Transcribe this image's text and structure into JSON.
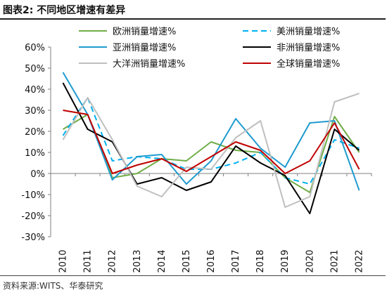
{
  "header": {
    "title": "图表2:  不同地区增速有差异"
  },
  "footer": {
    "source": "资料来源:WITS、华泰研究"
  },
  "chart_data": {
    "type": "line",
    "categories": [
      "2010",
      "2011",
      "2012",
      "2013",
      "2014",
      "2015",
      "2016",
      "2017",
      "2018",
      "2019",
      "2020",
      "2021",
      "2022"
    ],
    "y_ticks": [
      "60%",
      "50%",
      "40%",
      "30%",
      "20%",
      "10%",
      "0%",
      "-10%",
      "-20%",
      "-30%"
    ],
    "ylim": [
      -30,
      60
    ],
    "grid": false,
    "legend_position": "top",
    "series": [
      {
        "name": "欧洲销量增速%",
        "color": "#70ad47",
        "dash": false,
        "values": [
          21,
          28,
          -2,
          0,
          7,
          6,
          15,
          11,
          10,
          -2,
          -9,
          27,
          10
        ]
      },
      {
        "name": "美洲销量增速%",
        "color": "#00b0f0",
        "dash": true,
        "values": [
          18,
          36,
          6,
          8,
          7,
          2,
          2,
          5,
          10,
          -2,
          -5,
          16,
          12
        ]
      },
      {
        "name": "亚洲销量增速%",
        "color": "#1f9bcf",
        "dash": false,
        "values": [
          48,
          28,
          -3,
          8,
          9,
          -5,
          6,
          26,
          12,
          3,
          24,
          25,
          -8
        ]
      },
      {
        "name": "非洲销量增速%",
        "color": "#000000",
        "dash": false,
        "values": [
          43,
          21,
          15,
          -5,
          -2,
          -8,
          -4,
          13,
          5,
          -1,
          -19,
          21,
          11
        ]
      },
      {
        "name": "大洋洲销量增速%",
        "color": "#bfbfbf",
        "dash": false,
        "values": [
          16,
          36,
          16,
          -6,
          -11,
          3,
          2,
          17,
          25,
          -16,
          -11,
          34,
          38
        ]
      },
      {
        "name": "全球销量增速%",
        "color": "#c00000",
        "dash": false,
        "values": [
          30,
          28,
          0,
          4,
          7,
          1,
          8,
          15,
          11,
          0,
          6,
          24,
          2
        ]
      }
    ]
  }
}
